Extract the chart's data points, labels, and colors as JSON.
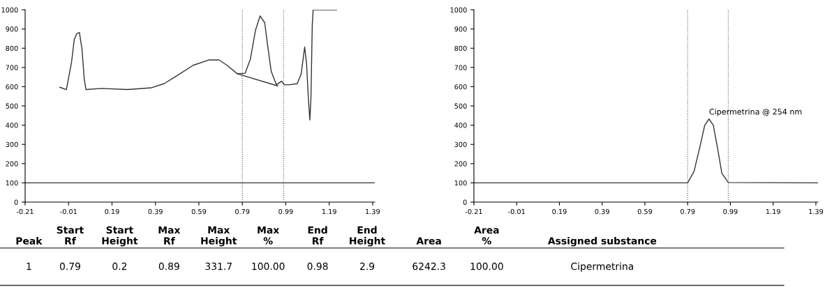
{
  "chart_data": [
    {
      "type": "line",
      "xlim": [
        -0.21,
        1.4
      ],
      "ylim": [
        0,
        1000
      ],
      "xticks": [
        -0.21,
        -0.01,
        0.19,
        0.39,
        0.59,
        0.79,
        0.99,
        1.19,
        1.39
      ],
      "yticks": [
        0,
        100,
        200,
        300,
        400,
        500,
        600,
        700,
        800,
        900,
        1000
      ],
      "grid": false,
      "legend": false,
      "series": [
        {
          "color": "#333333",
          "x": [
            -0.05,
            -0.02,
            0.004,
            0.016,
            0.028,
            0.04,
            0.052,
            0.062,
            0.07,
            0.142,
            0.262,
            0.37,
            0.43,
            0.503,
            0.563,
            0.635,
            0.683,
            0.72,
            0.767,
            0.803,
            0.827,
            0.851,
            0.872,
            0.893,
            0.909,
            0.923,
            0.947,
            0.971,
            0.983,
            1.007,
            1.043,
            1.061,
            1.077,
            1.086,
            1.094,
            1.101,
            1.106,
            1.112,
            1.116,
            1.224
          ],
          "values": [
            597,
            585,
            730,
            844,
            876,
            882,
            794,
            642,
            585,
            591,
            585,
            594,
            616,
            667,
            711,
            739,
            739,
            711,
            667,
            670,
            743,
            895,
            968,
            933,
            794,
            680,
            610,
            629,
            610,
            610,
            616,
            667,
            806,
            718,
            541,
            427,
            541,
            920,
            1000,
            1000
          ]
        },
        {
          "color": "#333333",
          "x": [
            0.767,
            0.953
          ],
          "values": [
            667,
            604
          ]
        },
        {
          "color": "#333333",
          "x": [
            -0.21,
            1.4
          ],
          "values": [
            100,
            100
          ]
        }
      ],
      "ref_lines": [
        {
          "axis": "x",
          "value": 0.79,
          "color": "#555555"
        },
        {
          "axis": "x",
          "value": 0.98,
          "color": "#555555"
        }
      ]
    },
    {
      "type": "line",
      "xlim": [
        -0.21,
        1.4
      ],
      "ylim": [
        0,
        1000
      ],
      "xticks": [
        -0.21,
        -0.01,
        0.19,
        0.39,
        0.59,
        0.79,
        0.99,
        1.19,
        1.39
      ],
      "yticks": [
        0,
        100,
        200,
        300,
        400,
        500,
        600,
        700,
        800,
        900,
        1000
      ],
      "grid": false,
      "legend": false,
      "series": [
        {
          "color": "#333333",
          "x": [
            -0.21,
            0.79,
            0.82,
            0.85,
            0.87,
            0.89,
            0.91,
            0.93,
            0.95,
            0.98,
            1.4
          ],
          "values": [
            100,
            100,
            160,
            300,
            400,
            432,
            400,
            280,
            150,
            102,
            100
          ]
        }
      ],
      "ref_lines": [
        {
          "axis": "x",
          "value": 0.79,
          "color": "#555555"
        },
        {
          "axis": "x",
          "value": 0.98,
          "color": "#555555"
        }
      ],
      "annotations": [
        {
          "text": "Cipermetrina @ 254 nm",
          "x": 0.89,
          "y": 432
        }
      ]
    },
    {
      "type": "other",
      "annotations": [
        "Peak",
        "Start\nRf",
        "Start\nHeight",
        "Max\nRf",
        "Max\nHeight",
        "Max\n%",
        "End\nRf",
        "End\nHeight",
        "Area",
        "Area\n%",
        "Assigned substance",
        "1",
        "0.79",
        "0.2",
        "0.89",
        "331.7",
        "100.00",
        "0.98",
        "2.9",
        "6242.3",
        "100.00",
        "Cipermetrina"
      ]
    }
  ]
}
